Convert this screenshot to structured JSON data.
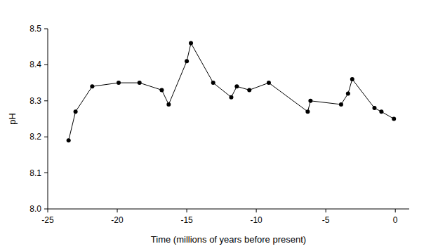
{
  "chart_data": {
    "type": "line",
    "x_label": "Time (millions of years before present)",
    "y_label": "pH",
    "x": [
      -23.5,
      -23.0,
      -21.8,
      -19.9,
      -18.4,
      -16.8,
      -16.3,
      -15.0,
      -14.7,
      -13.1,
      -11.8,
      -11.4,
      -10.5,
      -9.1,
      -6.3,
      -6.1,
      -3.9,
      -3.4,
      -3.1,
      -1.5,
      -1.0,
      -0.1
    ],
    "series": [
      {
        "name": "pH",
        "color": "#000000",
        "marker": "circle",
        "line_style": "solid",
        "values": [
          8.19,
          8.27,
          8.34,
          8.35,
          8.35,
          8.33,
          8.29,
          8.41,
          8.46,
          8.35,
          8.31,
          8.34,
          8.33,
          8.35,
          8.27,
          8.3,
          8.29,
          8.32,
          8.36,
          8.28,
          8.27,
          8.25
        ]
      }
    ],
    "xlim": [
      -25,
      1
    ],
    "xticks": [
      -25,
      -20,
      -15,
      -10,
      -5,
      0
    ],
    "ylim": [
      8.0,
      8.5
    ],
    "yticks": [
      {
        "value": 8.0,
        "label": "8.0"
      },
      8.1,
      8.2,
      8.3,
      8.4,
      8.5
    ],
    "grid": false
  }
}
